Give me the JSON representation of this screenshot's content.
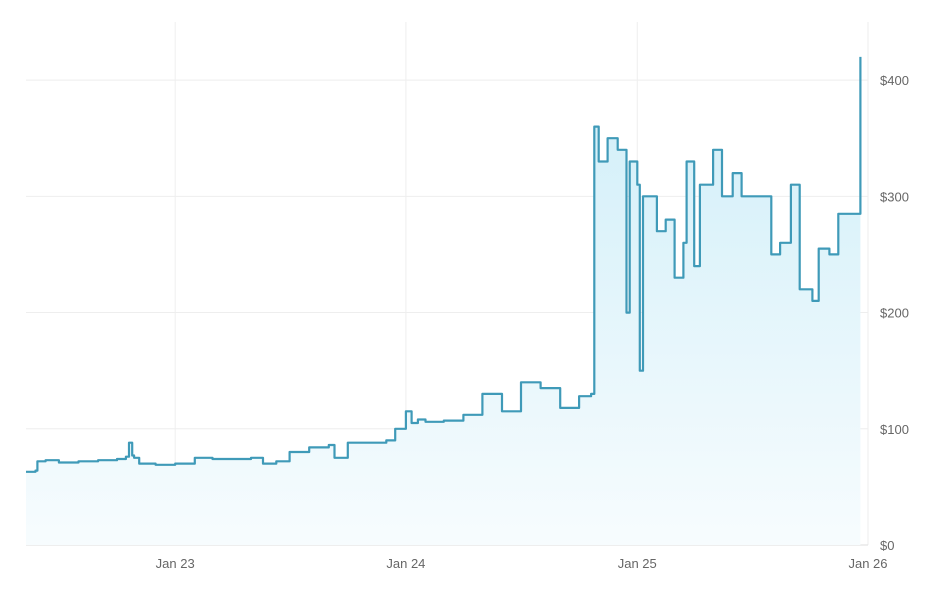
{
  "chart_data": {
    "type": "area",
    "title": "",
    "xlabel": "",
    "ylabel": "",
    "x_ticks": [
      "Jan 23",
      "Jan 24",
      "Jan 25",
      "Jan 26"
    ],
    "y_ticks": [
      "$0",
      "$100",
      "$200",
      "$300",
      "$400"
    ],
    "ylim": [
      0,
      450
    ],
    "xlim": [
      "2022-05-10",
      "2026-01-01"
    ],
    "grid": true,
    "legend": "none",
    "colors": {
      "line": "#3f9ab8",
      "fill_top": "#cfeef8",
      "fill_bottom": "#f7fcfe",
      "grid": "#eeeeee",
      "tick_text": "#666666"
    },
    "series": [
      {
        "x": [
          "2022-05-10",
          "2022-05-25",
          "2022-05-28",
          "2022-06-10",
          "2022-07-01",
          "2022-08-01",
          "2022-09-01",
          "2022-10-01",
          "2022-10-15",
          "2022-10-20",
          "2022-10-25",
          "2022-10-28",
          "2022-11-05",
          "2022-12-01",
          "2023-01-01",
          "2023-02-01",
          "2023-03-01",
          "2023-04-01",
          "2023-05-01",
          "2023-05-20",
          "2023-06-10",
          "2023-07-01",
          "2023-08-01",
          "2023-09-01",
          "2023-09-10",
          "2023-10-01",
          "2023-11-01",
          "2023-12-01",
          "2023-12-15",
          "2024-01-01",
          "2024-01-10",
          "2024-01-20",
          "2024-02-01",
          "2024-03-01",
          "2024-04-01",
          "2024-05-01",
          "2024-06-01",
          "2024-07-01",
          "2024-08-01",
          "2024-09-01",
          "2024-10-01",
          "2024-10-20",
          "2024-10-25",
          "2024-11-01",
          "2024-11-15",
          "2024-12-01",
          "2024-12-15",
          "2024-12-20",
          "2025-01-01",
          "2025-01-05",
          "2025-01-10",
          "2025-02-01",
          "2025-02-15",
          "2025-03-01",
          "2025-03-15",
          "2025-03-20",
          "2025-04-01",
          "2025-04-10",
          "2025-05-01",
          "2025-05-15",
          "2025-06-01",
          "2025-06-15",
          "2025-07-01",
          "2025-07-15",
          "2025-08-01",
          "2025-08-15",
          "2025-09-01",
          "2025-09-15",
          "2025-10-01",
          "2025-10-05",
          "2025-10-15",
          "2025-11-01",
          "2025-11-15",
          "2025-12-01",
          "2025-12-10",
          "2025-12-20"
        ],
        "values": [
          63,
          64,
          72,
          73,
          71,
          72,
          73,
          74,
          76,
          88,
          77,
          75,
          70,
          69,
          70,
          75,
          74,
          74,
          75,
          70,
          72,
          80,
          84,
          86,
          75,
          88,
          88,
          90,
          100,
          115,
          105,
          108,
          106,
          107,
          112,
          130,
          115,
          140,
          135,
          118,
          128,
          130,
          360,
          330,
          350,
          340,
          200,
          330,
          310,
          150,
          300,
          270,
          280,
          230,
          260,
          330,
          240,
          310,
          340,
          300,
          320,
          300,
          300,
          300,
          250,
          260,
          310,
          220,
          220,
          210,
          255,
          250,
          285,
          285,
          285,
          420
        ]
      }
    ]
  }
}
